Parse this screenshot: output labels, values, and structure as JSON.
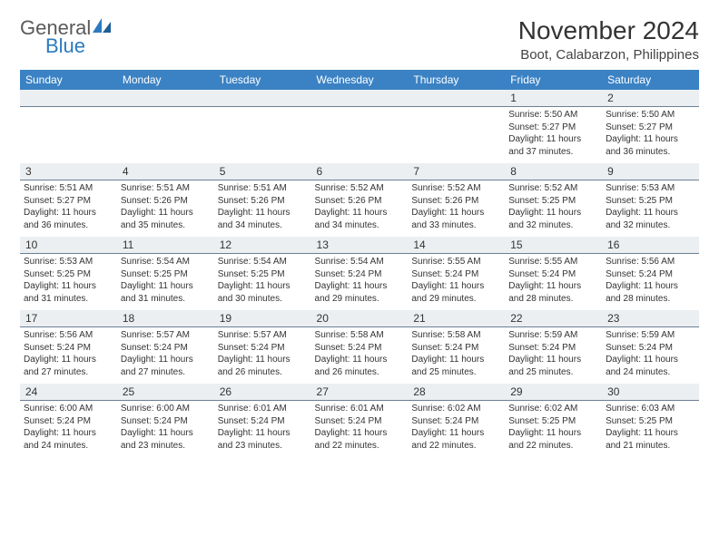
{
  "brand": {
    "part1": "General",
    "part2": "Blue"
  },
  "title": "November 2024",
  "location": "Boot, Calabarzon, Philippines",
  "colors": {
    "header_bg": "#3b82c4",
    "header_text": "#ffffff",
    "daynum_bg": "#eceff1",
    "daynum_border": "#6b7f94",
    "body_text": "#333333",
    "brand_gray": "#5a5a5a",
    "brand_blue": "#2b7bbf",
    "page_bg": "#ffffff"
  },
  "typography": {
    "title_fontsize": 28,
    "location_fontsize": 15,
    "dayheader_fontsize": 12,
    "daynum_fontsize": 12,
    "detail_fontsize": 10
  },
  "day_headers": [
    "Sunday",
    "Monday",
    "Tuesday",
    "Wednesday",
    "Thursday",
    "Friday",
    "Saturday"
  ],
  "weeks": [
    [
      null,
      null,
      null,
      null,
      null,
      {
        "n": "1",
        "sunrise": "Sunrise: 5:50 AM",
        "sunset": "Sunset: 5:27 PM",
        "daylight": "Daylight: 11 hours and 37 minutes."
      },
      {
        "n": "2",
        "sunrise": "Sunrise: 5:50 AM",
        "sunset": "Sunset: 5:27 PM",
        "daylight": "Daylight: 11 hours and 36 minutes."
      }
    ],
    [
      {
        "n": "3",
        "sunrise": "Sunrise: 5:51 AM",
        "sunset": "Sunset: 5:27 PM",
        "daylight": "Daylight: 11 hours and 36 minutes."
      },
      {
        "n": "4",
        "sunrise": "Sunrise: 5:51 AM",
        "sunset": "Sunset: 5:26 PM",
        "daylight": "Daylight: 11 hours and 35 minutes."
      },
      {
        "n": "5",
        "sunrise": "Sunrise: 5:51 AM",
        "sunset": "Sunset: 5:26 PM",
        "daylight": "Daylight: 11 hours and 34 minutes."
      },
      {
        "n": "6",
        "sunrise": "Sunrise: 5:52 AM",
        "sunset": "Sunset: 5:26 PM",
        "daylight": "Daylight: 11 hours and 34 minutes."
      },
      {
        "n": "7",
        "sunrise": "Sunrise: 5:52 AM",
        "sunset": "Sunset: 5:26 PM",
        "daylight": "Daylight: 11 hours and 33 minutes."
      },
      {
        "n": "8",
        "sunrise": "Sunrise: 5:52 AM",
        "sunset": "Sunset: 5:25 PM",
        "daylight": "Daylight: 11 hours and 32 minutes."
      },
      {
        "n": "9",
        "sunrise": "Sunrise: 5:53 AM",
        "sunset": "Sunset: 5:25 PM",
        "daylight": "Daylight: 11 hours and 32 minutes."
      }
    ],
    [
      {
        "n": "10",
        "sunrise": "Sunrise: 5:53 AM",
        "sunset": "Sunset: 5:25 PM",
        "daylight": "Daylight: 11 hours and 31 minutes."
      },
      {
        "n": "11",
        "sunrise": "Sunrise: 5:54 AM",
        "sunset": "Sunset: 5:25 PM",
        "daylight": "Daylight: 11 hours and 31 minutes."
      },
      {
        "n": "12",
        "sunrise": "Sunrise: 5:54 AM",
        "sunset": "Sunset: 5:25 PM",
        "daylight": "Daylight: 11 hours and 30 minutes."
      },
      {
        "n": "13",
        "sunrise": "Sunrise: 5:54 AM",
        "sunset": "Sunset: 5:24 PM",
        "daylight": "Daylight: 11 hours and 29 minutes."
      },
      {
        "n": "14",
        "sunrise": "Sunrise: 5:55 AM",
        "sunset": "Sunset: 5:24 PM",
        "daylight": "Daylight: 11 hours and 29 minutes."
      },
      {
        "n": "15",
        "sunrise": "Sunrise: 5:55 AM",
        "sunset": "Sunset: 5:24 PM",
        "daylight": "Daylight: 11 hours and 28 minutes."
      },
      {
        "n": "16",
        "sunrise": "Sunrise: 5:56 AM",
        "sunset": "Sunset: 5:24 PM",
        "daylight": "Daylight: 11 hours and 28 minutes."
      }
    ],
    [
      {
        "n": "17",
        "sunrise": "Sunrise: 5:56 AM",
        "sunset": "Sunset: 5:24 PM",
        "daylight": "Daylight: 11 hours and 27 minutes."
      },
      {
        "n": "18",
        "sunrise": "Sunrise: 5:57 AM",
        "sunset": "Sunset: 5:24 PM",
        "daylight": "Daylight: 11 hours and 27 minutes."
      },
      {
        "n": "19",
        "sunrise": "Sunrise: 5:57 AM",
        "sunset": "Sunset: 5:24 PM",
        "daylight": "Daylight: 11 hours and 26 minutes."
      },
      {
        "n": "20",
        "sunrise": "Sunrise: 5:58 AM",
        "sunset": "Sunset: 5:24 PM",
        "daylight": "Daylight: 11 hours and 26 minutes."
      },
      {
        "n": "21",
        "sunrise": "Sunrise: 5:58 AM",
        "sunset": "Sunset: 5:24 PM",
        "daylight": "Daylight: 11 hours and 25 minutes."
      },
      {
        "n": "22",
        "sunrise": "Sunrise: 5:59 AM",
        "sunset": "Sunset: 5:24 PM",
        "daylight": "Daylight: 11 hours and 25 minutes."
      },
      {
        "n": "23",
        "sunrise": "Sunrise: 5:59 AM",
        "sunset": "Sunset: 5:24 PM",
        "daylight": "Daylight: 11 hours and 24 minutes."
      }
    ],
    [
      {
        "n": "24",
        "sunrise": "Sunrise: 6:00 AM",
        "sunset": "Sunset: 5:24 PM",
        "daylight": "Daylight: 11 hours and 24 minutes."
      },
      {
        "n": "25",
        "sunrise": "Sunrise: 6:00 AM",
        "sunset": "Sunset: 5:24 PM",
        "daylight": "Daylight: 11 hours and 23 minutes."
      },
      {
        "n": "26",
        "sunrise": "Sunrise: 6:01 AM",
        "sunset": "Sunset: 5:24 PM",
        "daylight": "Daylight: 11 hours and 23 minutes."
      },
      {
        "n": "27",
        "sunrise": "Sunrise: 6:01 AM",
        "sunset": "Sunset: 5:24 PM",
        "daylight": "Daylight: 11 hours and 22 minutes."
      },
      {
        "n": "28",
        "sunrise": "Sunrise: 6:02 AM",
        "sunset": "Sunset: 5:24 PM",
        "daylight": "Daylight: 11 hours and 22 minutes."
      },
      {
        "n": "29",
        "sunrise": "Sunrise: 6:02 AM",
        "sunset": "Sunset: 5:25 PM",
        "daylight": "Daylight: 11 hours and 22 minutes."
      },
      {
        "n": "30",
        "sunrise": "Sunrise: 6:03 AM",
        "sunset": "Sunset: 5:25 PM",
        "daylight": "Daylight: 11 hours and 21 minutes."
      }
    ]
  ]
}
